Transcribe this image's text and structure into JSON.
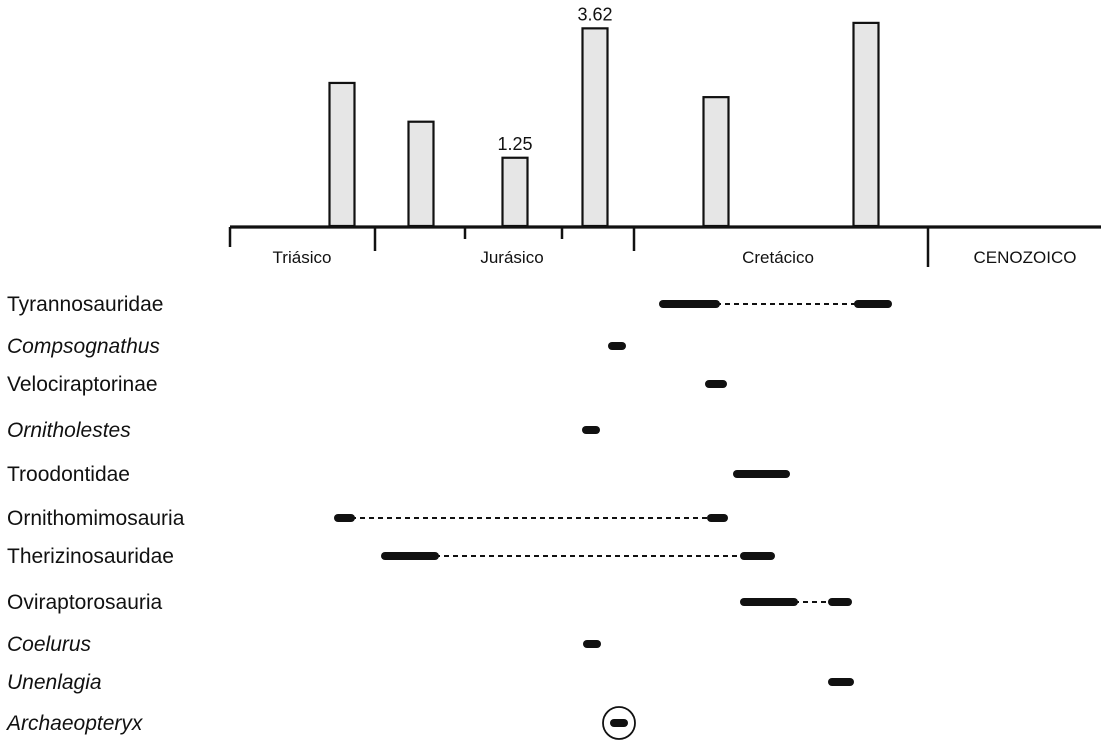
{
  "chart_data": {
    "type": "bar",
    "bars": [
      {
        "value": 2.62,
        "label": ""
      },
      {
        "value": 1.91,
        "label": ""
      },
      {
        "value": 1.25,
        "label": "1.25"
      },
      {
        "value": 3.62,
        "label": "3.62"
      },
      {
        "value": 2.36,
        "label": ""
      },
      {
        "value": 3.72,
        "label": ""
      }
    ],
    "periods": [
      "Triásico",
      "Jurásico",
      "Cretácico",
      "CENOZOICO"
    ],
    "ranges": [
      {
        "taxon": "Tyrannosauridae",
        "italic": false,
        "segments": [
          {
            "type": "solid"
          },
          {
            "type": "dashed"
          },
          {
            "type": "solid"
          }
        ]
      },
      {
        "taxon": "Compsognathus",
        "italic": true,
        "segments": [
          {
            "type": "solid"
          }
        ]
      },
      {
        "taxon": "Velociraptorinae",
        "italic": false,
        "segments": [
          {
            "type": "solid"
          }
        ]
      },
      {
        "taxon": "Ornitholestes",
        "italic": true,
        "segments": [
          {
            "type": "solid"
          }
        ]
      },
      {
        "taxon": "Troodontidae",
        "italic": false,
        "segments": [
          {
            "type": "solid"
          }
        ]
      },
      {
        "taxon": "Ornithomimosauria",
        "italic": false,
        "segments": [
          {
            "type": "solid"
          },
          {
            "type": "dashed"
          },
          {
            "type": "solid"
          }
        ]
      },
      {
        "taxon": "Therizinosauridae",
        "italic": false,
        "segments": [
          {
            "type": "solid"
          },
          {
            "type": "dashed"
          },
          {
            "type": "solid"
          }
        ]
      },
      {
        "taxon": "Oviraptorosauria",
        "italic": false,
        "segments": [
          {
            "type": "solid"
          },
          {
            "type": "dashed"
          },
          {
            "type": "solid"
          }
        ]
      },
      {
        "taxon": "Coelurus",
        "italic": true,
        "segments": [
          {
            "type": "solid"
          }
        ]
      },
      {
        "taxon": "Unenlagia",
        "italic": true,
        "segments": [
          {
            "type": "solid"
          }
        ]
      },
      {
        "taxon": "Archaeopteryx",
        "italic": true,
        "segments": [
          {
            "type": "solid"
          }
        ],
        "circled": true
      }
    ],
    "colors": {
      "bar_fill": "#e6e6e6",
      "ink": "#111111"
    }
  }
}
